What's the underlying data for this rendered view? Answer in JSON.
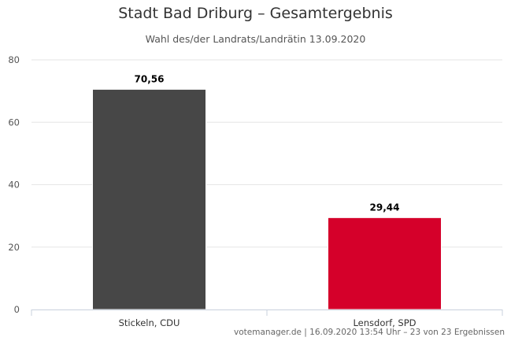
{
  "chart_data": {
    "type": "bar",
    "title": "Stadt Bad Driburg – Gesamtergebnis",
    "subtitle": "Wahl des/der Landrats/Landrätin 13.09.2020",
    "categories": [
      "Stickeln, CDU",
      "Lensdorf, SPD"
    ],
    "values": [
      70.56,
      29.44
    ],
    "value_labels": [
      "70,56",
      "29,44"
    ],
    "colors": [
      "#474747",
      "#d5002a"
    ],
    "ylim": [
      0,
      80
    ],
    "yticks": [
      0,
      20,
      40,
      60,
      80
    ],
    "grid": true,
    "legend": "none"
  },
  "credits": "votemanager.de | 16.09.2020 13:54 Uhr – 23 von 23 Ergebnissen"
}
